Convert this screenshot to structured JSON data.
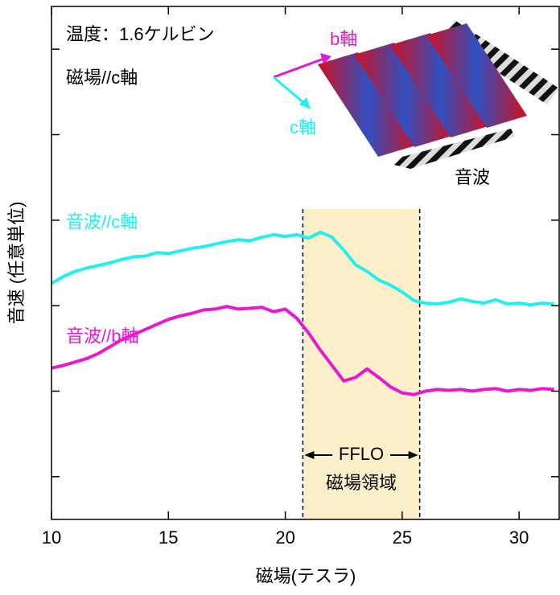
{
  "chart_data": {
    "type": "line",
    "x_label": "磁場(テスラ)",
    "y_label": "音速 (任意単位)",
    "annotations": [
      "温度：1.6ケルビン",
      "磁場//c軸"
    ],
    "inset": {
      "b_axis": "b軸",
      "c_axis": "c軸",
      "sound": "音波"
    },
    "region": {
      "x": [
        20.75,
        25.75
      ],
      "top": 3.63,
      "label": "FFLO",
      "sublabel": "磁場領域",
      "color": "#fdefc9"
    },
    "x": [
      10,
      10.5,
      11,
      11.5,
      12,
      12.5,
      13,
      13.5,
      14,
      14.5,
      15,
      15.5,
      16,
      16.5,
      17,
      17.5,
      18,
      18.5,
      19,
      19.5,
      20,
      20.5,
      21,
      21.5,
      22,
      22.5,
      23,
      23.5,
      24,
      24.5,
      25,
      25.5,
      26,
      26.5,
      27,
      27.5,
      28,
      28.5,
      29,
      29.5,
      30,
      30.5,
      31,
      31.5
    ],
    "series": [
      {
        "name": "音波//c軸",
        "color": "#22f0f0",
        "values": [
          2.76,
          2.84,
          2.9,
          2.94,
          2.97,
          3.0,
          3.04,
          3.07,
          3.08,
          3.12,
          3.11,
          3.14,
          3.17,
          3.19,
          3.22,
          3.25,
          3.27,
          3.26,
          3.3,
          3.33,
          3.31,
          3.33,
          3.29,
          3.36,
          3.3,
          3.15,
          2.98,
          2.9,
          2.8,
          2.74,
          2.66,
          2.56,
          2.53,
          2.52,
          2.54,
          2.58,
          2.55,
          2.53,
          2.57,
          2.52,
          2.53,
          2.51,
          2.53,
          2.52
        ]
      },
      {
        "name": "音波//b軸",
        "color": "#e619d2",
        "values": [
          1.77,
          1.8,
          1.84,
          1.88,
          1.94,
          2.02,
          2.1,
          2.16,
          2.22,
          2.28,
          2.34,
          2.38,
          2.41,
          2.45,
          2.46,
          2.49,
          2.46,
          2.47,
          2.48,
          2.43,
          2.46,
          2.35,
          2.18,
          1.98,
          1.8,
          1.62,
          1.66,
          1.76,
          1.66,
          1.55,
          1.48,
          1.46,
          1.5,
          1.52,
          1.51,
          1.52,
          1.5,
          1.52,
          1.53,
          1.5,
          1.52,
          1.51,
          1.53,
          1.52
        ]
      }
    ],
    "xlim": [
      10,
      31.75
    ],
    "xticks": [
      10,
      15,
      20,
      25,
      30
    ],
    "ylim": [
      0,
      6
    ],
    "yticks": [
      0.5,
      1.5,
      2.5,
      3.5,
      4.5,
      5.5
    ]
  }
}
